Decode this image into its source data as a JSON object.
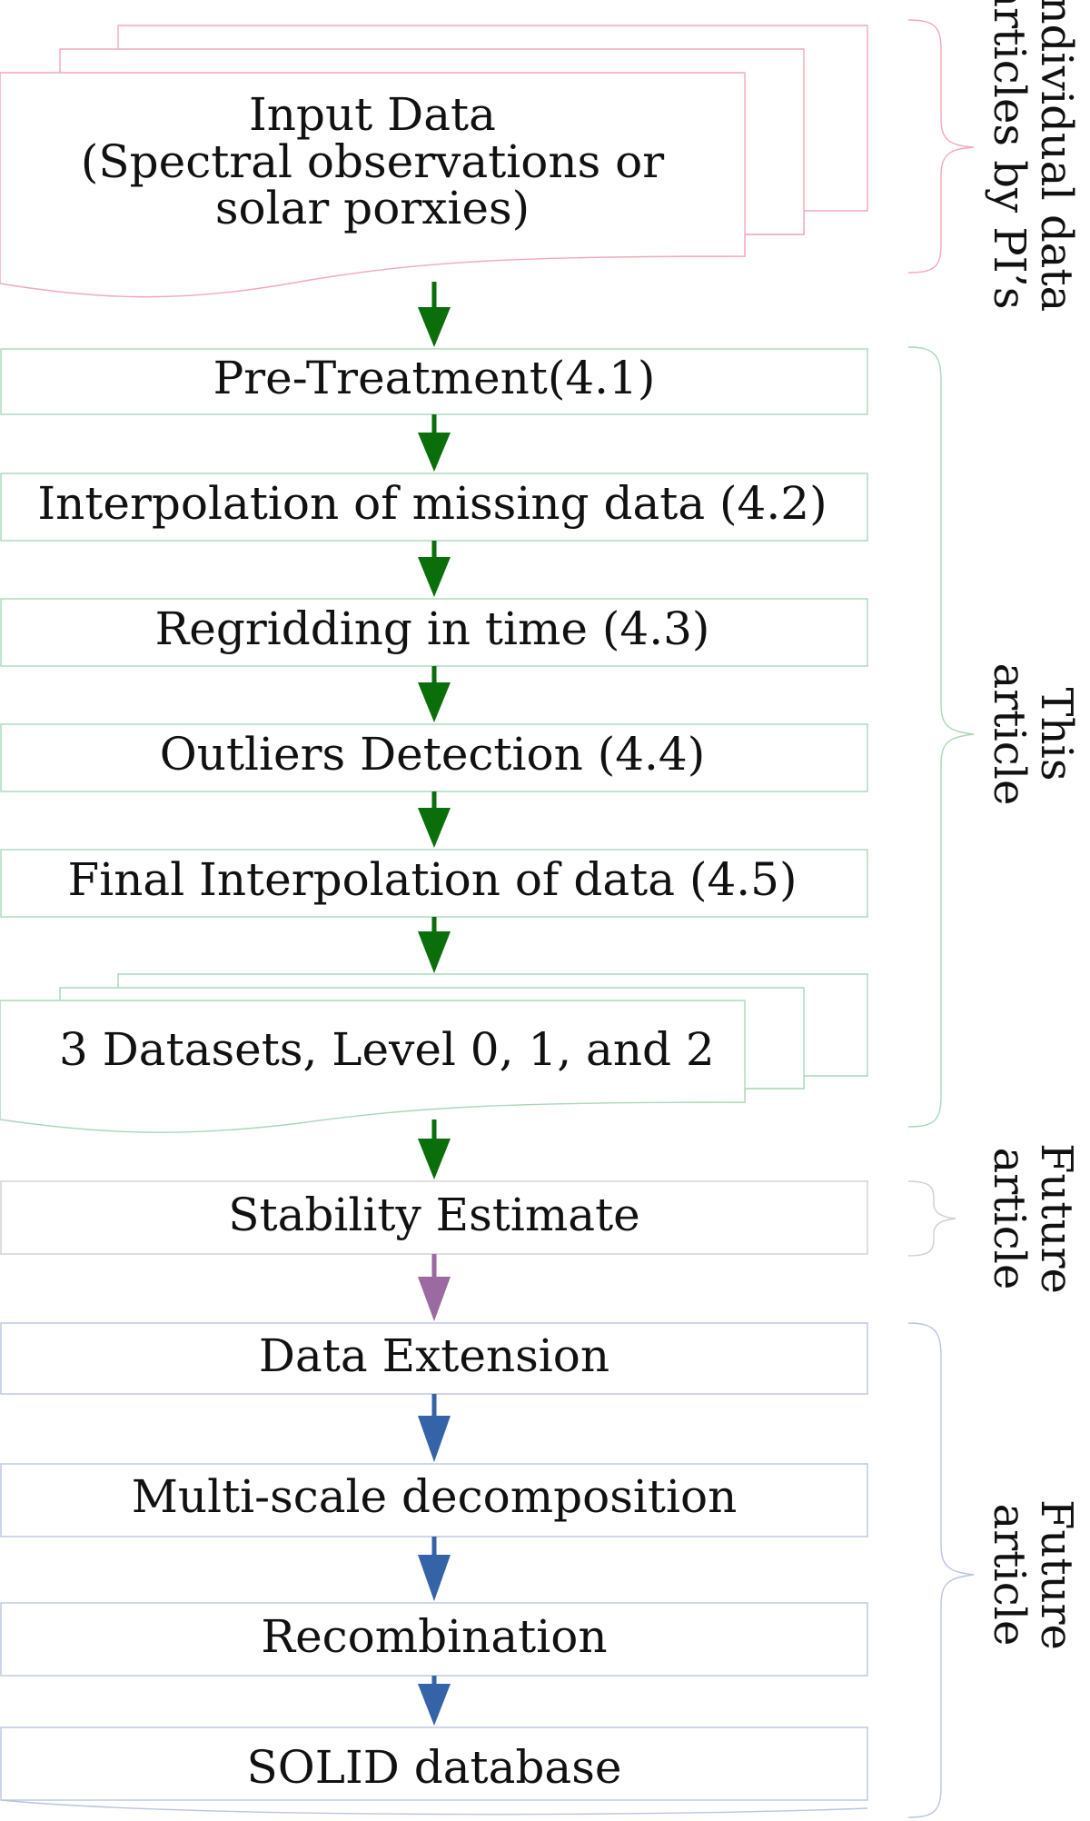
{
  "input": {
    "lines": [
      "Input Data",
      "(Spectral observations or",
      "solar porxies)"
    ]
  },
  "steps": {
    "pretreatment": "Pre-Treatment(4.1)",
    "interpolation": "Interpolation of missing data (4.2)",
    "regridding": "Regridding in time (4.3)",
    "outliers": "Outliers Detection (4.4)",
    "final_interp": "Final Interpolation of data (4.5)",
    "datasets": "3 Datasets, Level 0, 1, and 2",
    "stability": "Stability Estimate",
    "extension": "Data Extension",
    "multiscale": "Multi-scale decomposition",
    "recombination": "Recombination",
    "solid": "SOLID database"
  },
  "side_labels": {
    "individual": [
      "Individual data",
      "articles by PI’s"
    ],
    "this_article": [
      "This",
      "article"
    ],
    "future1": [
      "Future",
      "article"
    ],
    "future2": [
      "Future",
      "article"
    ]
  },
  "colors": {
    "pink": "#f2a8b8",
    "green_stroke": "#a9d8b8",
    "green_arrow": "#0a6e0a",
    "purple_arrow": "#9b6aa0",
    "blue_arrow": "#3563a8",
    "blue_stroke": "#b8c4e0"
  }
}
